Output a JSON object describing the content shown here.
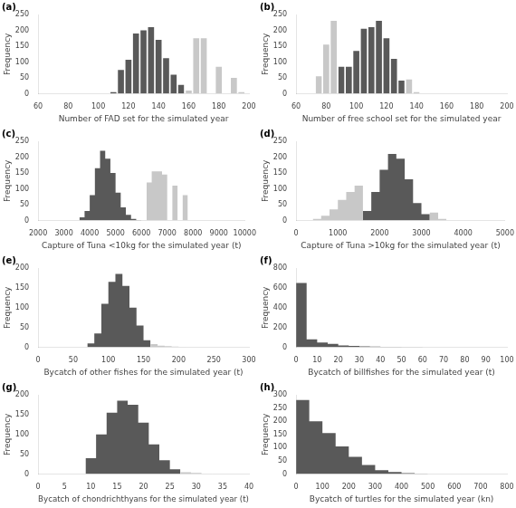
{
  "chart_data": [
    {
      "type": "bar",
      "title": "(a)",
      "xlabel": "Number of FAD set for the simulated year",
      "ylabel": "Frequency",
      "xlim": [
        60,
        200
      ],
      "ylim": [
        0,
        250
      ],
      "xticks": [
        60,
        80,
        100,
        120,
        140,
        160,
        180,
        200
      ],
      "yticks": [
        0,
        50,
        100,
        150,
        200,
        250
      ],
      "grid": false,
      "series": [
        {
          "color": "#595959",
          "x": [
            110,
            115,
            120,
            125,
            130,
            135,
            140,
            145,
            150,
            155
          ],
          "values": [
            5,
            75,
            107,
            190,
            200,
            210,
            170,
            112,
            60,
            28
          ],
          "width": 4
        },
        {
          "color": "#c8c8c8",
          "x": [
            160,
            165,
            170,
            180,
            190,
            195
          ],
          "values": [
            10,
            175,
            175,
            85,
            50,
            5
          ],
          "width": 4
        }
      ]
    },
    {
      "type": "bar",
      "title": "(b)",
      "xlabel": "Number of free school set for the simulated year",
      "ylabel": "Frequency",
      "xlim": [
        60,
        200
      ],
      "ylim": [
        0,
        250
      ],
      "xticks": [
        60,
        80,
        100,
        120,
        140,
        160,
        180,
        200
      ],
      "yticks": [
        0,
        50,
        100,
        150,
        200,
        250
      ],
      "grid": false,
      "series": [
        {
          "color": "#595959",
          "x": [
            90,
            95,
            100,
            105,
            110,
            115,
            120,
            125,
            130
          ],
          "values": [
            85,
            85,
            135,
            205,
            210,
            230,
            175,
            110,
            42
          ],
          "width": 4
        },
        {
          "color": "#c8c8c8",
          "x": [
            75,
            80,
            85,
            135,
            140
          ],
          "values": [
            55,
            155,
            230,
            45,
            5
          ],
          "width": 4
        }
      ]
    },
    {
      "type": "bar",
      "title": "(c)",
      "xlabel": "Capture of Tuna <10kg for the simulated year (t)",
      "ylabel": "Frequency",
      "xlim": [
        2000,
        10000
      ],
      "ylim": [
        0,
        250
      ],
      "xticks": [
        2000,
        3000,
        4000,
        5000,
        6000,
        7000,
        8000,
        9000,
        10000
      ],
      "yticks": [
        0,
        50,
        100,
        150,
        200,
        250
      ],
      "grid": false,
      "series": [
        {
          "color": "#595959",
          "x": [
            3700,
            3900,
            4100,
            4300,
            4500,
            4700,
            4900,
            5100,
            5300,
            5500,
            5700,
            5900
          ],
          "values": [
            10,
            30,
            80,
            165,
            220,
            195,
            150,
            88,
            42,
            18,
            5,
            2
          ],
          "width": 200
        },
        {
          "color": "#c8c8c8",
          "x": [
            6300,
            6500,
            6700,
            6900,
            7300,
            7700
          ],
          "values": [
            120,
            155,
            155,
            145,
            110,
            80
          ],
          "width": 200
        }
      ]
    },
    {
      "type": "bar",
      "title": "(d)",
      "xlabel": "Capture of Tuna >10kg for the simulated year (t)",
      "ylabel": "Frequency",
      "xlim": [
        0,
        5000
      ],
      "ylim": [
        0,
        250
      ],
      "xticks": [
        0,
        1000,
        2000,
        3000,
        4000,
        5000
      ],
      "yticks": [
        0,
        50,
        100,
        150,
        200,
        250
      ],
      "grid": false,
      "series": [
        {
          "color": "#595959",
          "x": [
            1700,
            1900,
            2100,
            2300,
            2500,
            2700,
            2900,
            3100
          ],
          "values": [
            30,
            90,
            160,
            210,
            195,
            130,
            55,
            20
          ],
          "width": 200
        },
        {
          "color": "#c8c8c8",
          "x": [
            500,
            700,
            900,
            1100,
            1300,
            1500,
            3300,
            3500
          ],
          "values": [
            5,
            15,
            35,
            65,
            90,
            110,
            25,
            5
          ],
          "width": 200
        }
      ]
    },
    {
      "type": "bar",
      "title": "(e)",
      "xlabel": "Bycatch of other fishes for the simulated year (t)",
      "ylabel": "Frequency",
      "xlim": [
        0,
        300
      ],
      "ylim": [
        0,
        200
      ],
      "xticks": [
        0,
        50,
        100,
        150,
        200,
        250,
        300
      ],
      "yticks": [
        0,
        50,
        100,
        150,
        200
      ],
      "grid": false,
      "series": [
        {
          "color": "#595959",
          "x": [
            75,
            85,
            95,
            105,
            115,
            125,
            135,
            145,
            155
          ],
          "values": [
            10,
            35,
            110,
            165,
            185,
            155,
            100,
            55,
            18
          ],
          "width": 10
        },
        {
          "color": "#c8c8c8",
          "x": [
            165,
            175,
            185,
            195,
            205
          ],
          "values": [
            8,
            4,
            3,
            2,
            1
          ],
          "width": 10
        }
      ]
    },
    {
      "type": "bar",
      "title": "(f)",
      "xlabel": "Bycatch of billfishes for the simulated year (t)",
      "ylabel": "Frequency",
      "xlim": [
        0,
        100
      ],
      "ylim": [
        0,
        800
      ],
      "xticks": [
        0,
        10,
        20,
        30,
        40,
        50,
        60,
        70,
        80,
        90,
        100
      ],
      "yticks": [
        0,
        200,
        400,
        600,
        800
      ],
      "grid": false,
      "series": [
        {
          "color": "#595959",
          "x": [
            2.5,
            7.5,
            12.5,
            17.5,
            22.5,
            27.5,
            32.5,
            37.5,
            42.5,
            47.5,
            52.5,
            57.5,
            62.5
          ],
          "values": [
            650,
            80,
            50,
            35,
            20,
            15,
            10,
            8,
            6,
            5,
            4,
            3,
            2
          ],
          "width": 5
        }
      ]
    },
    {
      "type": "bar",
      "title": "(g)",
      "xlabel": "Bycatch of chondrichthyans for the simulated year (t)",
      "ylabel": "Frequency",
      "xlim": [
        0,
        40
      ],
      "ylim": [
        0,
        200
      ],
      "xticks": [
        0,
        5,
        10,
        15,
        20,
        25,
        30,
        35,
        40
      ],
      "yticks": [
        0,
        50,
        100,
        150,
        200
      ],
      "grid": false,
      "series": [
        {
          "color": "#595959",
          "x": [
            10,
            12,
            14,
            16,
            18,
            20,
            22,
            24,
            26
          ],
          "values": [
            40,
            100,
            155,
            185,
            175,
            130,
            75,
            35,
            12
          ],
          "width": 2
        },
        {
          "color": "#c8c8c8",
          "x": [
            28,
            30,
            32
          ],
          "values": [
            5,
            3,
            1
          ],
          "width": 2
        }
      ]
    },
    {
      "type": "bar",
      "title": "(h)",
      "xlabel": "Bycatch of turtles for the simulated year (kn)",
      "ylabel": "Frequency",
      "xlim": [
        0,
        800
      ],
      "ylim": [
        0,
        300
      ],
      "xticks": [
        0,
        100,
        200,
        300,
        400,
        500,
        600,
        700,
        800
      ],
      "yticks": [
        0,
        50,
        100,
        150,
        200,
        250,
        300
      ],
      "grid": false,
      "series": [
        {
          "color": "#595959",
          "x": [
            25,
            75,
            125,
            175,
            225,
            275,
            325,
            375,
            425,
            475
          ],
          "values": [
            280,
            200,
            155,
            105,
            65,
            35,
            15,
            8,
            4,
            2
          ],
          "width": 50
        }
      ]
    }
  ]
}
